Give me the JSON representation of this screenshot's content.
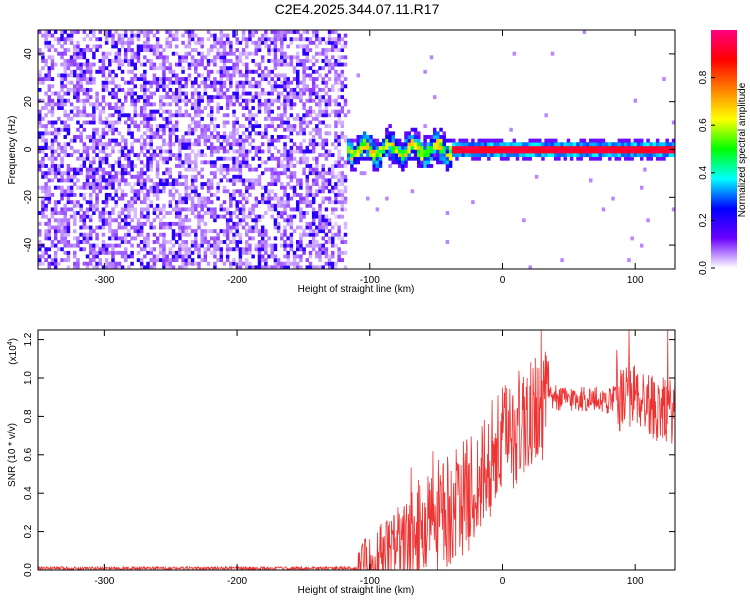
{
  "title": "C2E4.2025.344.07.11.R17",
  "chart_data": [
    {
      "type": "heatmap",
      "name": "spectrogram",
      "xlabel": "Height of straight line (km)",
      "ylabel": "Frequency (Hz)",
      "xlim": [
        -350,
        130
      ],
      "ylim": [
        -50,
        50
      ],
      "xticks": [
        -300,
        -200,
        -100,
        0,
        100
      ],
      "xtick_labels": [
        "-300",
        "-200",
        "-100",
        "0",
        "100"
      ],
      "yticks": [
        -40,
        -20,
        0,
        20,
        40
      ],
      "ytick_labels": [
        "-40",
        "-20",
        "0",
        "20",
        "40"
      ],
      "features": {
        "noise_region_x": [
          -350,
          -118
        ],
        "noise_level": 0.18,
        "signal_band_x": [
          -118,
          130
        ],
        "signal_center_hz": 0,
        "signal_onset_km": -118,
        "strong_line_start_km": -38,
        "strong_line_amplitude": 0.95
      },
      "colorbar": {
        "label": "Normalized spectral amplitude",
        "range": [
          0,
          1
        ],
        "ticks": [
          0.0,
          0.2,
          0.4,
          0.6,
          0.8
        ],
        "tick_labels": [
          "0.0",
          "0.2",
          "0.4",
          "0.6",
          "0.8"
        ],
        "colormap": [
          "#ffffff",
          "#6a00ff",
          "#0000ff",
          "#00ffff",
          "#00ff00",
          "#ffff00",
          "#ff8000",
          "#ff0000",
          "#ff0080"
        ]
      }
    },
    {
      "type": "line",
      "name": "snr",
      "xlabel": "Height of straight line (km)",
      "ylabel": "SNR (10 * v/v)",
      "scale_label": "(x10",
      "scale_exp": "4",
      "xlim": [
        -350,
        130
      ],
      "ylim": [
        0,
        1.25
      ],
      "xticks": [
        -300,
        -200,
        -100,
        0,
        100
      ],
      "xtick_labels": [
        "-300",
        "-200",
        "-100",
        "0",
        "100"
      ],
      "yticks": [
        0.0,
        0.2,
        0.4,
        0.6,
        0.8,
        1.0,
        1.2
      ],
      "ytick_labels": [
        "0.0",
        "0.2",
        "0.4",
        "0.6",
        "0.8",
        "1.0",
        "1.2"
      ],
      "color": "#ee3333",
      "envelope": {
        "x": [
          -350,
          -110,
          -100,
          -80,
          -60,
          -50,
          -40,
          -30,
          -20,
          -10,
          0,
          10,
          20,
          30,
          40,
          60,
          80,
          100,
          115,
          130
        ],
        "y": [
          0.01,
          0.01,
          0.07,
          0.13,
          0.22,
          0.3,
          0.33,
          0.4,
          0.46,
          0.55,
          0.7,
          0.76,
          0.84,
          0.89,
          0.9,
          0.9,
          0.89,
          0.93,
          0.86,
          0.84
        ]
      }
    }
  ]
}
